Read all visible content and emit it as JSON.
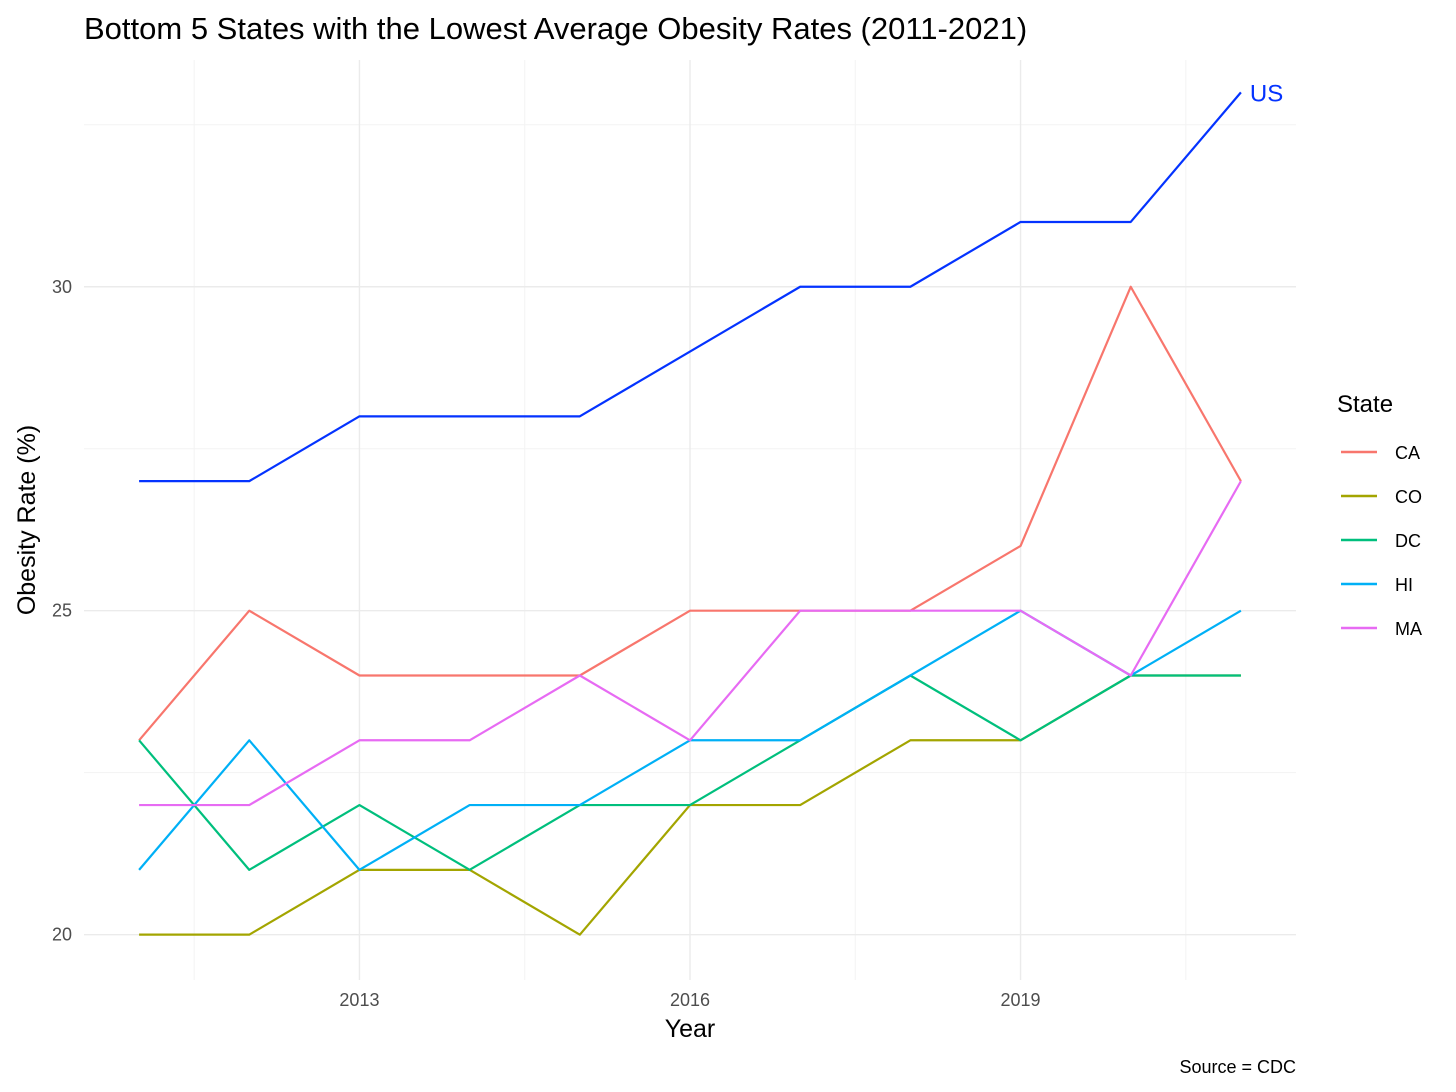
{
  "chart_data": {
    "type": "line",
    "title": "Bottom 5 States with the Lowest Average Obesity Rates (2011-2021)",
    "xlabel": "Year",
    "ylabel": "Obesity Rate (%)",
    "caption": "Source = CDC",
    "x": [
      2011,
      2012,
      2013,
      2014,
      2015,
      2016,
      2017,
      2018,
      2019,
      2020,
      2021
    ],
    "xlim": [
      2010.5,
      2021.5
    ],
    "ylim": [
      19.3,
      33.5
    ],
    "x_ticks": [
      2013,
      2016,
      2019
    ],
    "x_tick_labels": [
      "2013",
      "2016",
      "2019"
    ],
    "y_ticks": [
      20,
      25,
      30
    ],
    "y_tick_labels": [
      "20",
      "25",
      "30"
    ],
    "grid": true,
    "legend": {
      "title": "State",
      "position": "right"
    },
    "series": [
      {
        "name": "CA",
        "color": "#F8766D",
        "values": [
          23,
          25,
          24,
          24,
          24,
          25,
          25,
          25,
          26,
          30,
          27
        ]
      },
      {
        "name": "CO",
        "color": "#A3A500",
        "values": [
          20,
          20,
          21,
          21,
          20,
          22,
          22,
          23,
          23,
          24,
          24
        ]
      },
      {
        "name": "DC",
        "color": "#00BF7D",
        "values": [
          23,
          21,
          22,
          21,
          22,
          22,
          23,
          24,
          23,
          24,
          24
        ]
      },
      {
        "name": "HI",
        "color": "#00B0F6",
        "values": [
          21,
          23,
          21,
          22,
          22,
          23,
          23,
          24,
          25,
          24,
          25
        ]
      },
      {
        "name": "MA",
        "color": "#E76BF3",
        "values": [
          22,
          22,
          23,
          23,
          24,
          23,
          25,
          25,
          25,
          24,
          27
        ]
      }
    ],
    "reference_series": {
      "name": "US",
      "label": "US",
      "color": "#0433FF",
      "values": [
        27,
        27,
        28,
        28,
        28,
        29,
        30,
        30,
        31,
        31,
        33
      ]
    }
  }
}
